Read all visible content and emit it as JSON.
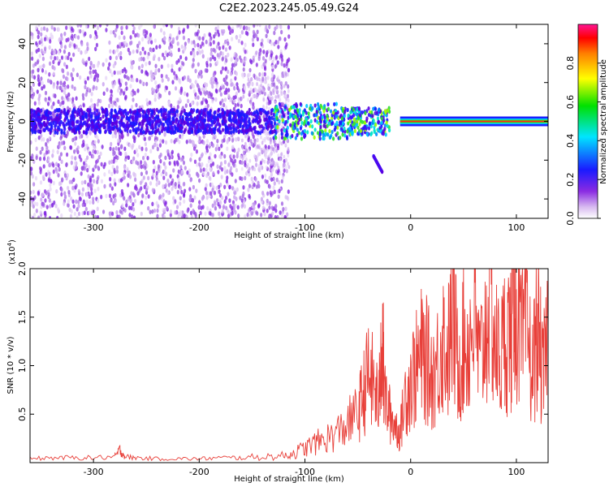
{
  "title": "C2E2.2023.245.05.49.G24",
  "chart_data": [
    {
      "type": "heatmap",
      "xlabel": "Height of straight line (km)",
      "ylabel": "Frequency (Hz)",
      "xlim": [
        -360,
        130
      ],
      "ylim": [
        -50,
        50
      ],
      "x_ticks": [
        -300,
        -200,
        -100,
        0,
        100
      ],
      "x_tick_labels": [
        "-300",
        "-200",
        "-100",
        "0",
        "100"
      ],
      "y_ticks": [
        -40,
        -20,
        0,
        20,
        40
      ],
      "y_tick_labels": [
        "-40",
        "-20",
        "0",
        "20",
        "40"
      ],
      "colorbar": {
        "label": "Normalized spectral amplitude",
        "range": [
          0,
          1
        ],
        "ticks": [
          0.0,
          0.2,
          0.4,
          0.6,
          0.8
        ],
        "tick_labels": [
          "0.0",
          "0.2",
          "0.4",
          "0.6",
          "0.8"
        ],
        "colormap": "rainbow (white → violet → blue → cyan → green → yellow → orange → red)"
      },
      "features": [
        {
          "desc": "scattered low-amplitude noise across full frequency range",
          "x_range": [
            -360,
            -120
          ],
          "y_range": [
            -50,
            50
          ]
        },
        {
          "desc": "tight carrier band near 0 Hz",
          "x_range": [
            -10,
            130
          ],
          "y_range": [
            -2,
            2
          ],
          "amplitude": 0.9
        },
        {
          "desc": "broadened band near 0 Hz",
          "x_range": [
            -130,
            -20
          ],
          "y_range": [
            -10,
            10
          ],
          "amplitude": 0.5
        },
        {
          "desc": "short descending streak",
          "x_range": [
            -40,
            -25
          ],
          "y_range": [
            -27,
            -18
          ],
          "amplitude": 0.25
        }
      ],
      "grid": false
    },
    {
      "type": "line",
      "xlabel": "Height of straight line (km)",
      "ylabel": "SNR (10 * v/v)",
      "y_multiplier_label": "(x10",
      "y_multiplier_exp": "4",
      "y_multiplier_close": ")",
      "xlim": [
        -360,
        130
      ],
      "ylim": [
        0,
        2.0
      ],
      "x_ticks": [
        -300,
        -200,
        -100,
        0,
        100
      ],
      "x_tick_labels": [
        "-300",
        "-200",
        "-100",
        "0",
        "100"
      ],
      "y_ticks": [
        0.5,
        1.0,
        1.5,
        2.0
      ],
      "y_tick_labels": [
        "0.5",
        "1.0",
        "1.5",
        "2.0"
      ],
      "series_color": "#e8403a",
      "series": [
        {
          "x": [
            -360,
            -340,
            -320,
            -300,
            -280,
            -275,
            -270,
            -260,
            -240,
            -220,
            -200,
            -180,
            -160,
            -140,
            -120,
            -110,
            -100,
            -90,
            -80,
            -70,
            -60,
            -50,
            -45,
            -40,
            -35,
            -30,
            -27,
            -25,
            -20,
            -15,
            -10,
            -5,
            0,
            5,
            10,
            15,
            20,
            25,
            30,
            35,
            40,
            45,
            50,
            55,
            60,
            65,
            70,
            75,
            80,
            85,
            90,
            95,
            98,
            100,
            105,
            110,
            115,
            120,
            125,
            130
          ],
          "y": [
            0.04,
            0.05,
            0.05,
            0.05,
            0.06,
            0.13,
            0.06,
            0.05,
            0.04,
            0.04,
            0.04,
            0.05,
            0.05,
            0.06,
            0.07,
            0.1,
            0.15,
            0.2,
            0.25,
            0.3,
            0.4,
            0.5,
            0.7,
            0.9,
            0.8,
            0.6,
            1.45,
            0.7,
            0.5,
            0.4,
            0.3,
            0.7,
            0.85,
            0.95,
            1.1,
            1.05,
            0.9,
            1.0,
            1.3,
            1.1,
            1.5,
            1.0,
            1.25,
            1.2,
            1.55,
            1.0,
            1.3,
            1.8,
            1.2,
            1.05,
            1.35,
            1.3,
            2.0,
            1.6,
            1.2,
            1.4,
            0.9,
            1.45,
            0.85,
            1.35
          ]
        }
      ],
      "grid": false
    }
  ]
}
